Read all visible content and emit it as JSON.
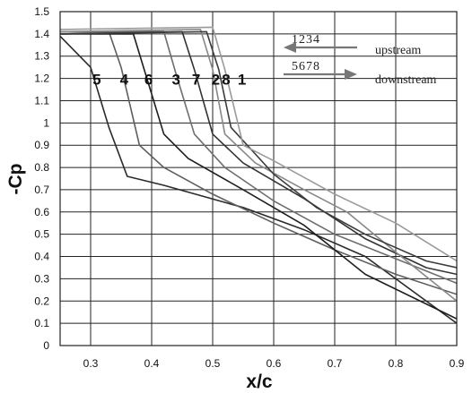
{
  "chart_data": {
    "type": "line",
    "xlabel": "x/c",
    "ylabel": "-Cp",
    "xlim": [
      0.25,
      0.9
    ],
    "ylim": [
      0,
      1.5
    ],
    "x_ticks": [
      "0.3",
      "0.4",
      "0.5",
      "0.6",
      "0.7",
      "0.8",
      "0.9"
    ],
    "y_ticks": [
      "0",
      "0.1",
      "0.2",
      "0.3",
      "0.4",
      "0.5",
      "0.6",
      "0.7",
      "0.8",
      "0.9",
      "1",
      "1.1",
      "1.2",
      "1.3",
      "1.4",
      "1.5"
    ],
    "grid": true,
    "legend": {
      "upstream_numbers": "1234",
      "upstream_label": "upstream",
      "downstream_numbers": "5678",
      "downstream_label": "downstream"
    },
    "curve_labels": [
      {
        "text": "5",
        "x": 0.31,
        "y": 1.2
      },
      {
        "text": "4",
        "x": 0.355,
        "y": 1.2
      },
      {
        "text": "6",
        "x": 0.395,
        "y": 1.2
      },
      {
        "text": "3",
        "x": 0.44,
        "y": 1.2
      },
      {
        "text": "7",
        "x": 0.473,
        "y": 1.2
      },
      {
        "text": "2",
        "x": 0.505,
        "y": 1.2
      },
      {
        "text": "8",
        "x": 0.522,
        "y": 1.2
      },
      {
        "text": "1",
        "x": 0.548,
        "y": 1.2
      }
    ],
    "series": [
      {
        "color": "#2a2a2a",
        "x": [
          0.25,
          0.3,
          0.33,
          0.36,
          0.42,
          0.55,
          0.65,
          0.75,
          0.9
        ],
        "y": [
          1.39,
          1.25,
          0.98,
          0.76,
          0.72,
          0.62,
          0.52,
          0.4,
          0.1
        ]
      },
      {
        "color": "#5e5e5e",
        "x": [
          0.25,
          0.33,
          0.35,
          0.38,
          0.42,
          0.5,
          0.6,
          0.7,
          0.8,
          0.9
        ],
        "y": [
          1.41,
          1.41,
          1.25,
          0.9,
          0.8,
          0.68,
          0.55,
          0.43,
          0.32,
          0.23
        ]
      },
      {
        "color": "#1e1e1e",
        "x": [
          0.25,
          0.37,
          0.39,
          0.42,
          0.46,
          0.55,
          0.65,
          0.75,
          0.9
        ],
        "y": [
          1.4,
          1.4,
          1.22,
          0.95,
          0.84,
          0.7,
          0.54,
          0.32,
          0.12
        ]
      },
      {
        "color": "#6e6e6e",
        "x": [
          0.25,
          0.42,
          0.44,
          0.47,
          0.52,
          0.6,
          0.7,
          0.8,
          0.9
        ],
        "y": [
          1.41,
          1.41,
          1.22,
          0.95,
          0.8,
          0.65,
          0.5,
          0.39,
          0.28
        ]
      },
      {
        "color": "#333333",
        "x": [
          0.25,
          0.45,
          0.47,
          0.5,
          0.55,
          0.65,
          0.75,
          0.85,
          0.9
        ],
        "y": [
          1.4,
          1.41,
          1.24,
          0.95,
          0.82,
          0.66,
          0.48,
          0.35,
          0.32
        ]
      },
      {
        "color": "#888888",
        "x": [
          0.25,
          0.48,
          0.5,
          0.52,
          0.57,
          0.65,
          0.72,
          0.8,
          0.9
        ],
        "y": [
          1.41,
          1.42,
          1.24,
          0.95,
          0.82,
          0.7,
          0.6,
          0.42,
          0.2
        ]
      },
      {
        "color": "#3c3c3c",
        "x": [
          0.25,
          0.49,
          0.51,
          0.53,
          0.6,
          0.67,
          0.75,
          0.85,
          0.9
        ],
        "y": [
          1.4,
          1.41,
          1.24,
          0.98,
          0.77,
          0.62,
          0.5,
          0.38,
          0.35
        ]
      },
      {
        "color": "#9a9a9a",
        "x": [
          0.25,
          0.5,
          0.52,
          0.55,
          0.6,
          0.7,
          0.8,
          0.9
        ],
        "y": [
          1.42,
          1.43,
          1.24,
          0.9,
          0.83,
          0.68,
          0.55,
          0.38
        ]
      }
    ]
  }
}
